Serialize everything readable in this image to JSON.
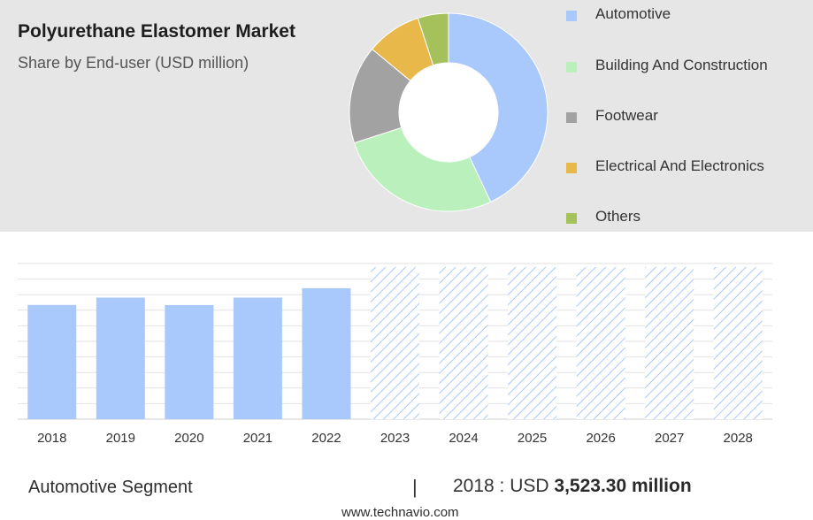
{
  "header": {
    "title": "Polyurethane Elastomer Market",
    "subtitle": "Share by End-user (USD million)"
  },
  "chart_data": [
    {
      "type": "pie",
      "variant": "donut",
      "title": "Polyurethane Elastomer Market",
      "subtitle": "Share by End-user (USD million)",
      "categories": [
        "Automotive",
        "Building And Construction",
        "Footwear",
        "Electrical And Electronics",
        "Others"
      ],
      "values": [
        43,
        27,
        16,
        9,
        5
      ],
      "colors": [
        "#a9c8fb",
        "#b9f0bc",
        "#a2a2a2",
        "#e8b94a",
        "#a5c15b"
      ],
      "legend_position": "right"
    },
    {
      "type": "bar",
      "categories": [
        "2018",
        "2019",
        "2020",
        "2021",
        "2022",
        "2023",
        "2024",
        "2025",
        "2026",
        "2027",
        "2028"
      ],
      "series": [
        {
          "values": [
            3523.3,
            3750,
            3520,
            3750,
            4040,
            null,
            null,
            null,
            null,
            null,
            null
          ]
        }
      ],
      "forecast_categories": [
        "2023",
        "2024",
        "2025",
        "2026",
        "2027",
        "2028"
      ],
      "ylim": [
        0,
        4800
      ],
      "grid": true,
      "bar_color": "#a9c8fb",
      "forecast_hatch_color": "#a9c8fb"
    }
  ],
  "footer": {
    "segment_label": "Automotive Segment",
    "divider": "|",
    "value_prefix": "2018 : USD ",
    "value_amount": "3,523.30 million",
    "source": "www.technavio.com"
  }
}
